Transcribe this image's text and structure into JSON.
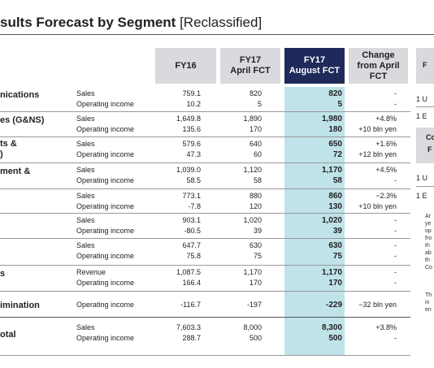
{
  "title": {
    "main": "sults Forecast by Segment",
    "sub": "[Reclassified]"
  },
  "headers": {
    "fy16": "FY16",
    "april": [
      "FY17",
      "April FCT"
    ],
    "august": [
      "FY17",
      "August FCT"
    ],
    "change": [
      "Change",
      "from April",
      "FCT"
    ]
  },
  "segments": [
    {
      "name": [
        "nications"
      ],
      "lines": [
        {
          "label": "Sales",
          "fy16": "759.1",
          "april": "820",
          "august": "820",
          "change": "-"
        },
        {
          "label": "Operating income",
          "fy16": "10.2",
          "april": "5",
          "august": "5",
          "change": "-"
        }
      ]
    },
    {
      "name": [
        "es (G&NS)"
      ],
      "lines": [
        {
          "label": "Sales",
          "fy16": "1,649.8",
          "april": "1,890",
          "august": "1,980",
          "change": "+4.8%"
        },
        {
          "label": "Operating income",
          "fy16": "135.6",
          "april": "170",
          "august": "180",
          "change": "+10 bln yen"
        }
      ]
    },
    {
      "name": [
        "ts &",
        ")"
      ],
      "lines": [
        {
          "label": "Sales",
          "fy16": "579.6",
          "april": "640",
          "august": "650",
          "change": "+1.6%"
        },
        {
          "label": "Operating income",
          "fy16": "47.3",
          "april": "60",
          "august": "72",
          "change": "+12 bln yen"
        }
      ]
    },
    {
      "name": [
        "ment &"
      ],
      "lines": [
        {
          "label": "Sales",
          "fy16": "1,039.0",
          "april": "1,120",
          "august": "1,170",
          "change": "+4.5%"
        },
        {
          "label": "Operating income",
          "fy16": "58.5",
          "april": "58",
          "august": "58",
          "change": "-"
        }
      ]
    },
    {
      "name": [
        ""
      ],
      "lines": [
        {
          "label": "Sales",
          "fy16": "773.1",
          "april": "880",
          "august": "860",
          "change": "−2.3%"
        },
        {
          "label": "Operating income",
          "fy16": "-7.8",
          "april": "120",
          "august": "130",
          "change": "+10 bln yen"
        }
      ]
    },
    {
      "name": [
        ""
      ],
      "lines": [
        {
          "label": "Sales",
          "fy16": "903.1",
          "april": "1,020",
          "august": "1,020",
          "change": "-"
        },
        {
          "label": "Operating income",
          "fy16": "-80.5",
          "april": "39",
          "august": "39",
          "change": "-"
        }
      ]
    },
    {
      "name": [
        ""
      ],
      "lines": [
        {
          "label": "Sales",
          "fy16": "647.7",
          "april": "630",
          "august": "630",
          "change": "-"
        },
        {
          "label": "Operating income",
          "fy16": "75.8",
          "april": "75",
          "august": "75",
          "change": "-"
        }
      ]
    },
    {
      "name": [
        "s"
      ],
      "lines": [
        {
          "label": "Revenue",
          "fy16": "1,087.5",
          "april": "1,170",
          "august": "1,170",
          "change": "-"
        },
        {
          "label": "Operating income",
          "fy16": "166.4",
          "april": "170",
          "august": "170",
          "change": "-"
        }
      ]
    },
    {
      "name": [
        "imination"
      ],
      "lines": [
        {
          "label": "Operating income",
          "fy16": "-116.7",
          "april": "-197",
          "august": "-229",
          "change": "−32 bln yen"
        }
      ]
    },
    {
      "name": [
        "otal"
      ],
      "lines": [
        {
          "label": "Sales",
          "fy16": "7,603.3",
          "april": "8,000",
          "august": "8,300",
          "change": "+3.8%"
        },
        {
          "label": "Operating income",
          "fy16": "288.7",
          "april": "500",
          "august": "500",
          "change": "-"
        }
      ]
    }
  ],
  "right_panel": {
    "hdr1": "F",
    "line1": "1 U",
    "line2": "1 E",
    "hdr2": [
      "Co",
      "F"
    ],
    "line3": "1 U",
    "line4": "1 E",
    "text1": [
      "Ar",
      "ye",
      "op",
      "fro",
      "th",
      "ab",
      "th",
      "Co"
    ],
    "text2": [
      "Th",
      "in",
      "en"
    ]
  }
}
